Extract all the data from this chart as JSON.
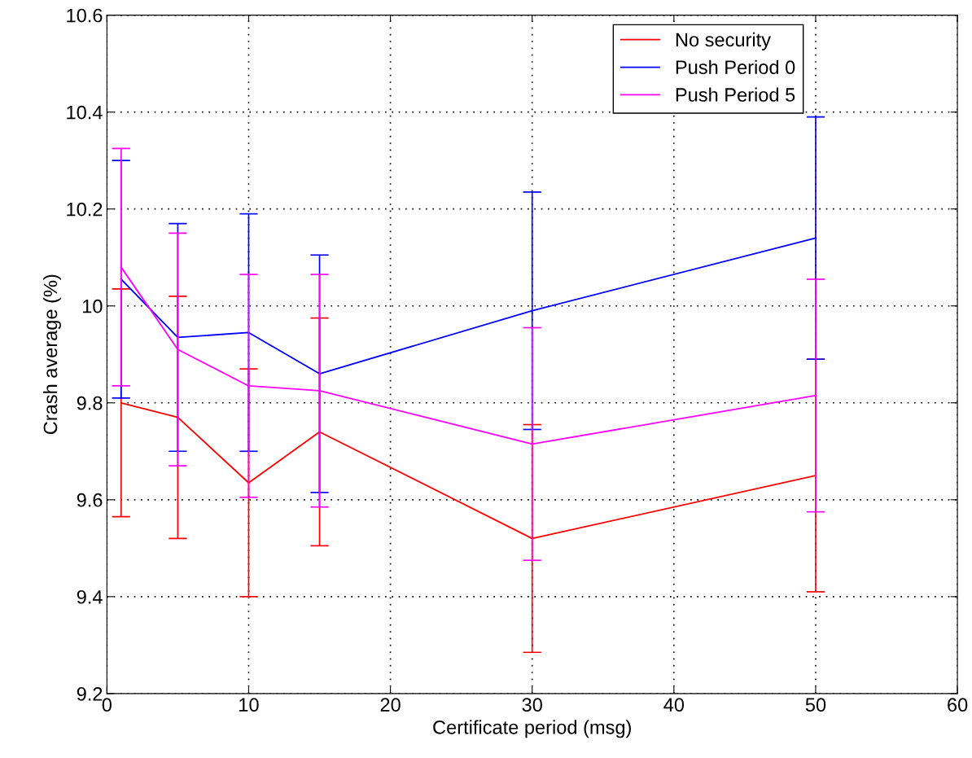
{
  "chart_data": {
    "type": "line",
    "xlabel": "Certificate period (msg)",
    "ylabel": "Crash average (%)",
    "x": [
      1,
      5,
      10,
      15,
      30,
      50
    ],
    "series": [
      {
        "name": "No security",
        "color": "#ff0000",
        "values": [
          9.8,
          9.77,
          9.635,
          9.74,
          9.52,
          9.65
        ],
        "errors": [
          0.235,
          0.25,
          0.235,
          0.235,
          0.235,
          0.24
        ]
      },
      {
        "name": "Push Period 0",
        "color": "#0000ff",
        "values": [
          10.055,
          9.935,
          9.945,
          9.86,
          9.99,
          10.14
        ],
        "errors": [
          0.245,
          0.235,
          0.245,
          0.245,
          0.245,
          0.25
        ]
      },
      {
        "name": "Push Period 5",
        "color": "#ff00ff",
        "values": [
          10.08,
          9.91,
          9.835,
          9.825,
          9.715,
          9.815
        ],
        "errors": [
          0.245,
          0.24,
          0.23,
          0.24,
          0.24,
          0.24
        ]
      }
    ],
    "xlim": [
      0,
      60
    ],
    "xticks": [
      0,
      10,
      20,
      30,
      40,
      50,
      60
    ],
    "ylim": [
      9.2,
      10.6
    ],
    "yticks": [
      9.2,
      9.4,
      9.6,
      9.8,
      10,
      10.2,
      10.4,
      10.6
    ],
    "grid": true,
    "legend": "top right",
    "marker": "none",
    "line_style": "solid"
  }
}
